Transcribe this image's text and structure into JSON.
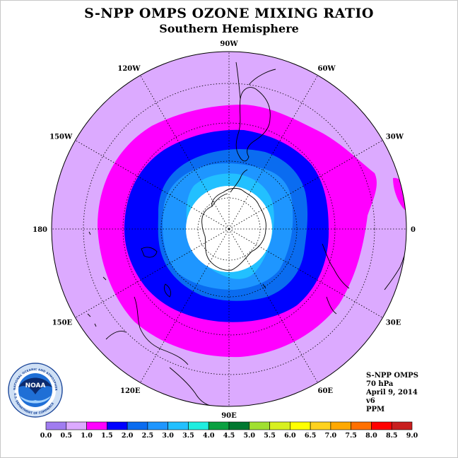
{
  "header": {
    "title": "S-NPP OMPS OZONE MIXING RATIO",
    "subtitle": "Southern Hemisphere"
  },
  "map": {
    "projection": "polar-stereographic-south",
    "longitude_labels": [
      "90W",
      "60W",
      "30W",
      "0",
      "30E",
      "60E",
      "90E",
      "120E",
      "150E",
      "180",
      "150W",
      "120W"
    ],
    "colors": {
      "background": "#dcaaff",
      "ring_1_0": "#ff00ff",
      "ring_1_5": "#0000ff",
      "ring_2_0": "#0a6cf0",
      "ring_2_5": "#1e96ff",
      "ring_3_0": "#22c0ff",
      "missing": "#ffffff"
    }
  },
  "info": {
    "instrument": "S-NPP OMPS",
    "level": "70 hPa",
    "date": "April 9, 2014",
    "version": "v6",
    "units": "PPM"
  },
  "logo": {
    "text": "NOAA",
    "ring_text": "NATIONAL OCEANIC AND ATMOSPHERIC ADMINISTRATION",
    "ring_text_bottom": "U.S. DEPARTMENT OF COMMERCE"
  },
  "colorbar": {
    "ticks": [
      "0.0",
      "0.5",
      "1.0",
      "1.5",
      "2.0",
      "2.5",
      "3.0",
      "3.5",
      "4.0",
      "4.5",
      "5.0",
      "5.5",
      "6.0",
      "6.5",
      "7.0",
      "7.5",
      "8.0",
      "8.5",
      "9.0"
    ],
    "colors": [
      "#a07cf0",
      "#dcaaff",
      "#ff00ff",
      "#0000ff",
      "#0a6cf0",
      "#1e96ff",
      "#22c0ff",
      "#1eeee0",
      "#0aa040",
      "#007830",
      "#a0e030",
      "#d8f020",
      "#ffff00",
      "#ffd21e",
      "#ffa800",
      "#ff7000",
      "#ff0000",
      "#c81e1e"
    ]
  }
}
